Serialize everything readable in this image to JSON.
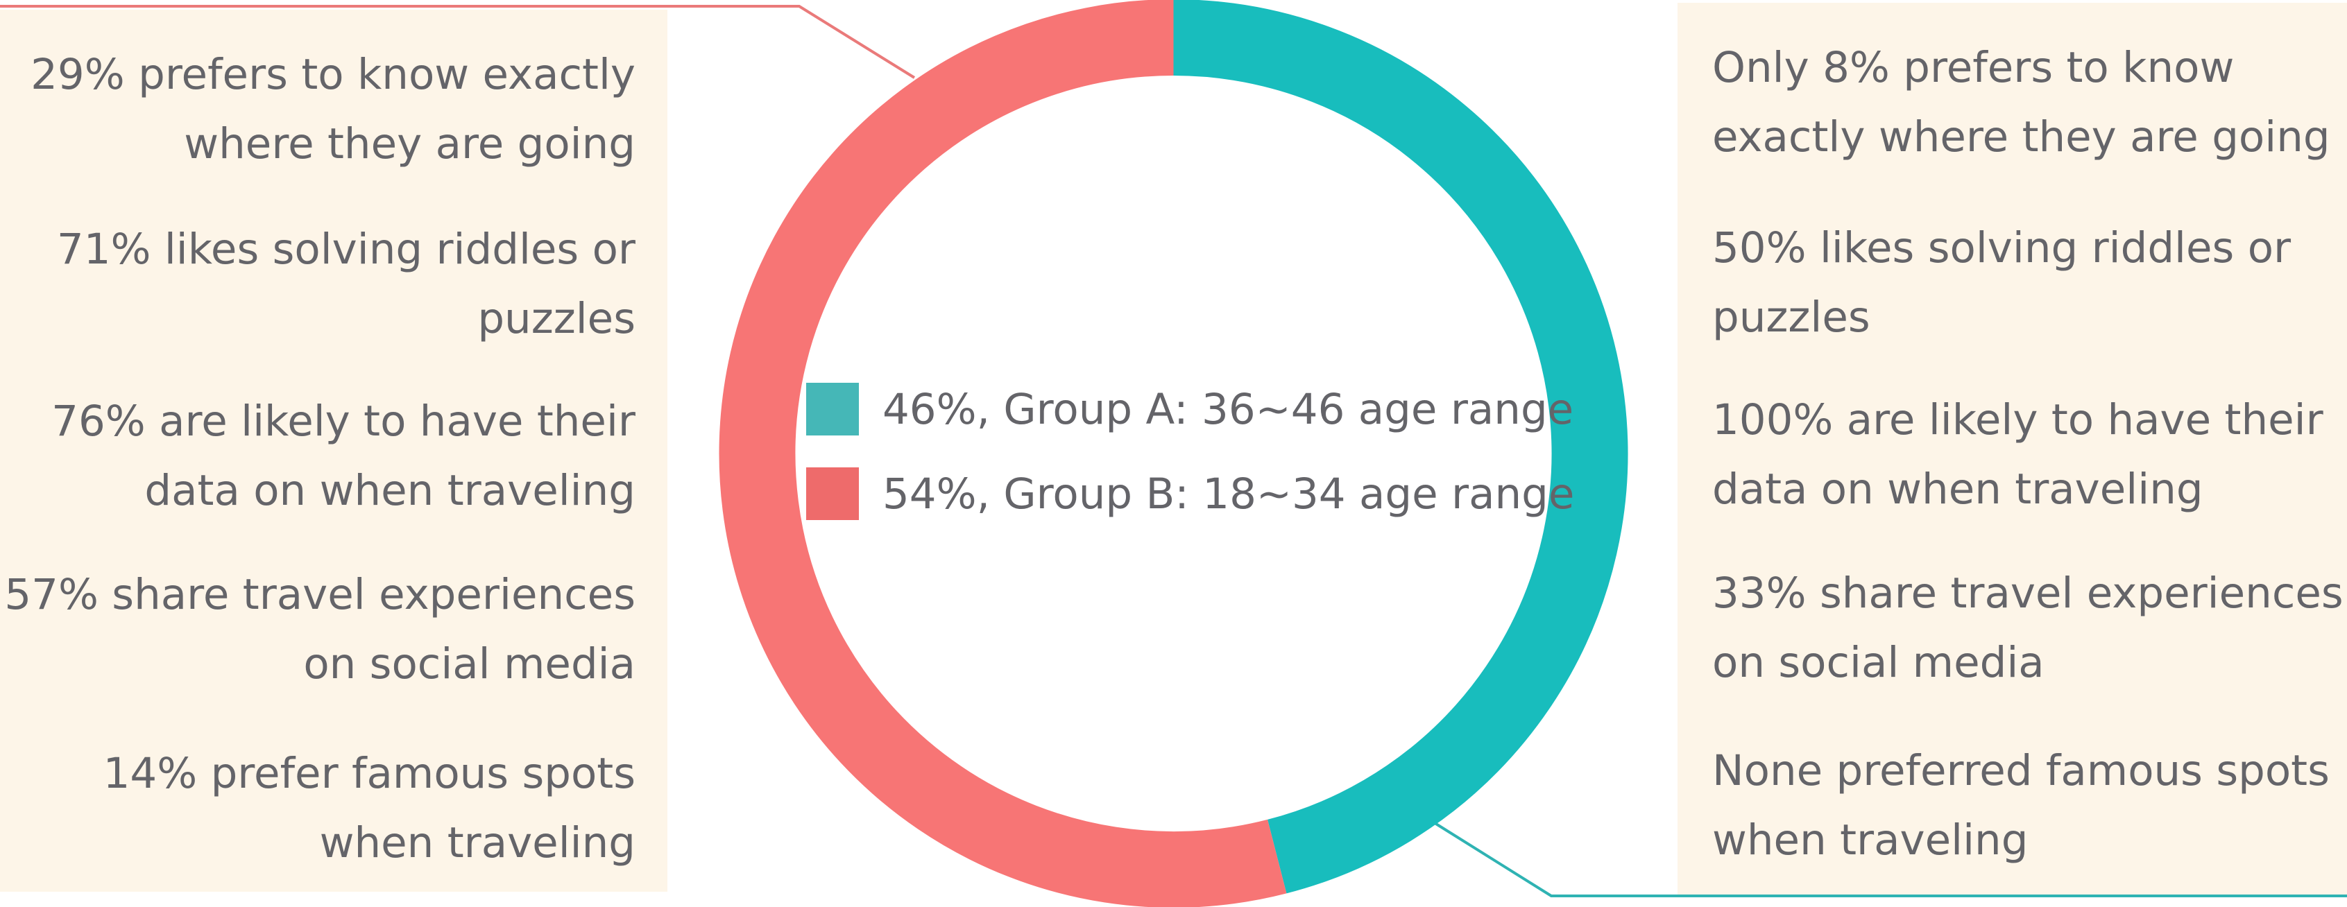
{
  "chart_data": {
    "type": "pie",
    "series": [
      {
        "name": "Group A: 36~46 age range",
        "value": 46,
        "color": "#18bdbd",
        "legend_color": "#45b7b7"
      },
      {
        "name": "Group B: 18~34 age range",
        "value": 54,
        "color": "#f77575",
        "legend_color": "#ee6b6b"
      }
    ],
    "legend": {
      "group_a": "46%, Group A: 36~46 age range",
      "group_b": "54%, Group B: 18~34 age range"
    },
    "group_b_facts": [
      [
        "29% prefers to know exactly",
        "where they are going"
      ],
      [
        "71% likes solving riddles or",
        "puzzles"
      ],
      [
        "76% are likely to have their",
        "data on when traveling"
      ],
      [
        "57% share travel experiences",
        "on social media"
      ],
      [
        "14% prefer famous spots",
        "when traveling"
      ]
    ],
    "group_a_facts": [
      [
        "Only 8% prefers to know",
        "exactly where they are going"
      ],
      [
        "50% likes solving riddles or",
        "puzzles"
      ],
      [
        "100% are likely to have their",
        "data on when traveling"
      ],
      [
        "33% share travel experiences",
        "on social media"
      ],
      [
        "None preferred famous spots",
        "when traveling"
      ]
    ]
  },
  "colors": {
    "panel_background": "#fdf5e8",
    "text": "#646469",
    "group_a_connector": "#2fb3b3",
    "group_b_connector": "#ea7a7a"
  }
}
